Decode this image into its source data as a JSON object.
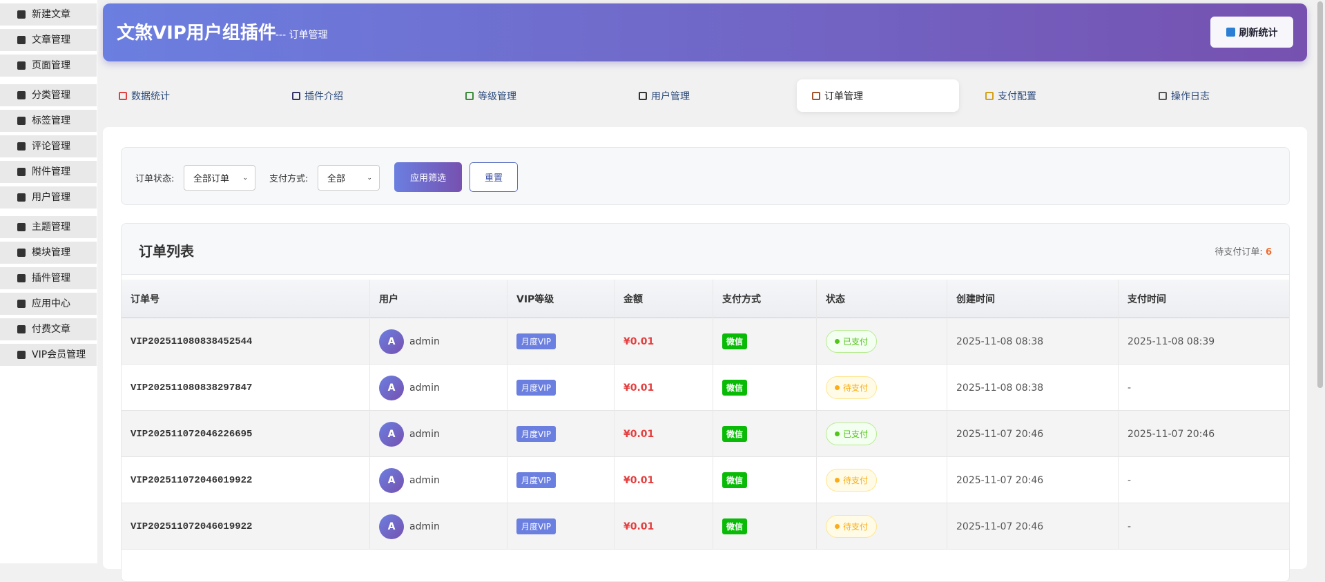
{
  "sidebar": [
    "新建文章",
    "文章管理",
    "页面管理",
    "分类管理",
    "标签管理",
    "评论管理",
    "附件管理",
    "用户管理",
    "主题管理",
    "模块管理",
    "插件管理",
    "应用中心",
    "付费文章",
    "VIP会员管理"
  ],
  "header": {
    "title": "文煞VIP用户组插件",
    "subtitle": "--- 订单管理",
    "refresh_button": "刷新统计"
  },
  "tabs": [
    "数据统计",
    "插件介绍",
    "等级管理",
    "用户管理",
    "订单管理",
    "支付配置",
    "操作日志"
  ],
  "filters": {
    "status_label": "订单状态:",
    "status_value": "全部订单",
    "payment_label": "支付方式:",
    "payment_value": "全部",
    "apply_button": "应用筛选",
    "reset_button": "重置"
  },
  "orders": {
    "title": "订单列表",
    "pending_label": "待支付订单:",
    "pending_count": 6,
    "columns": [
      "订单号",
      "用户",
      "VIP等级",
      "金额",
      "支付方式",
      "状态",
      "创建时间",
      "支付时间"
    ],
    "rows": [
      [
        "VIP202511080838452544",
        "A",
        "admin",
        "月度VIP",
        "¥0.01",
        "微信",
        "已支付",
        "2025-11-08 08:38",
        "2025-11-08 08:39"
      ],
      [
        "VIP202511080838297847",
        "A",
        "admin",
        "月度VIP",
        "¥0.01",
        "微信",
        "待支付",
        "2025-11-08 08:38",
        "-"
      ],
      [
        "VIP202511072046226695",
        "A",
        "admin",
        "月度VIP",
        "¥0.01",
        "微信",
        "已支付",
        "2025-11-07 20:46",
        "2025-11-07 20:46"
      ],
      [
        "VIP202511072046019922",
        "A",
        "admin",
        "月度VIP",
        "¥0.01",
        "微信",
        "待支付",
        "2025-11-07 20:46",
        "-"
      ],
      [
        "VIP202511072046019922",
        "A",
        "admin",
        "月度VIP",
        "¥0.01",
        "微信",
        "待支付",
        "2025-11-07 20:46",
        "-"
      ]
    ]
  }
}
